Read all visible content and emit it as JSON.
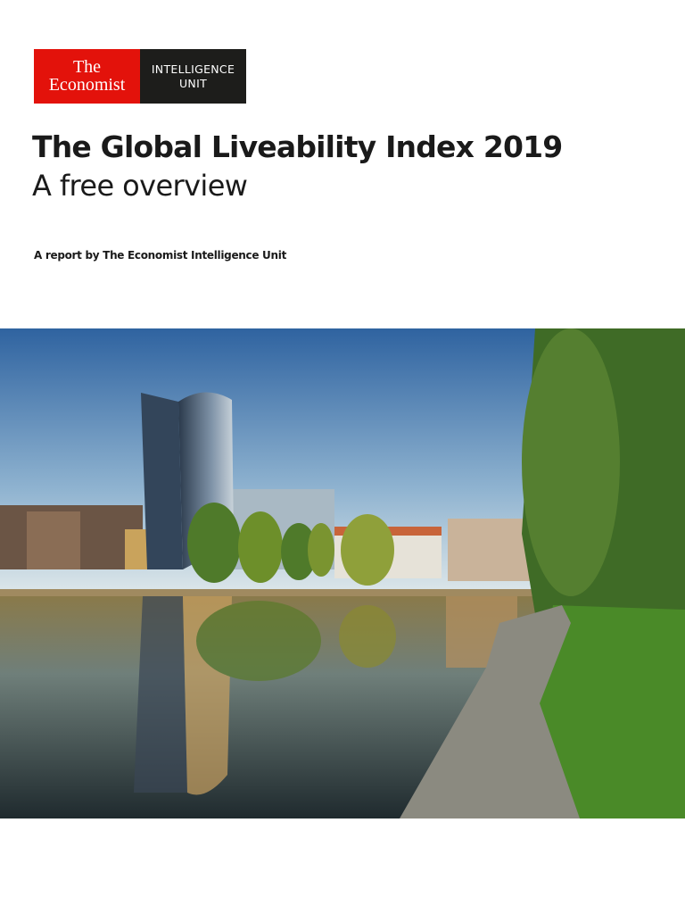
{
  "logo": {
    "line1": "The",
    "line2": "Economist",
    "unit_line1": "INTELLIGENCE",
    "unit_line2": "UNIT"
  },
  "header": {
    "title": "The Global Liveability Index 2019",
    "subtitle": "A free overview",
    "byline": "A report by The Economist Intelligence Unit"
  }
}
